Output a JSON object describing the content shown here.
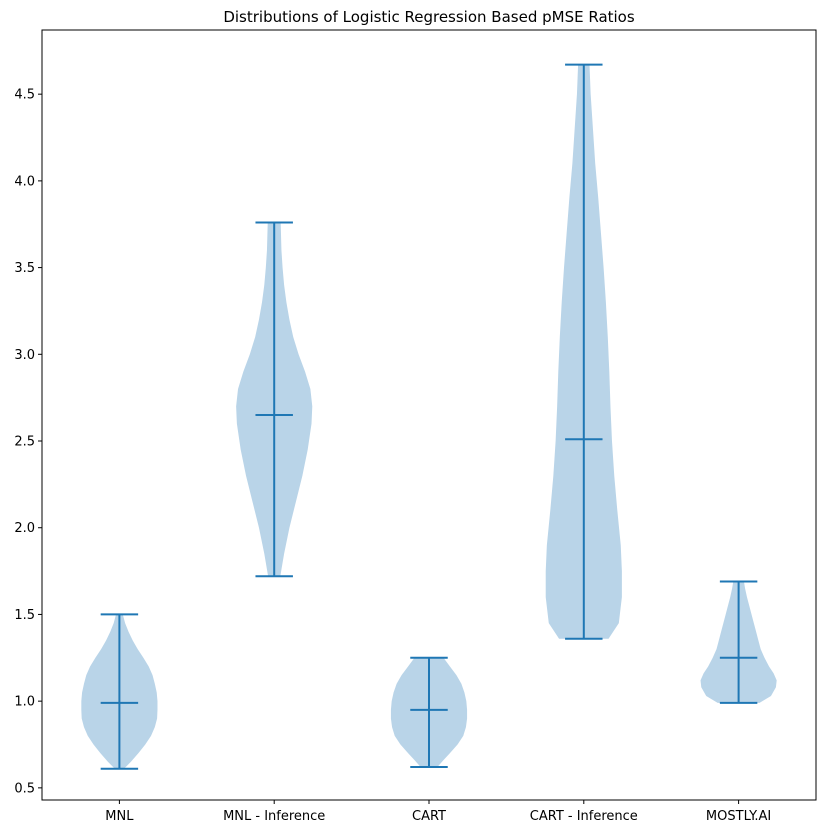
{
  "chart_data": {
    "type": "violin",
    "title": "Distributions of Logistic Regression Based pMSE Ratios",
    "xlabel": "",
    "ylabel": "",
    "categories": [
      "MNL",
      "MNL - Inference",
      "CART",
      "CART - Inference",
      "MOSTLY.AI"
    ],
    "ylim": [
      0.43,
      4.87
    ],
    "yticks": [
      0.5,
      1.0,
      1.5,
      2.0,
      2.5,
      3.0,
      3.5,
      4.0,
      4.5
    ],
    "ytick_labels": [
      "0.5",
      "1.0",
      "1.5",
      "2.0",
      "2.5",
      "3.0",
      "3.5",
      "4.0",
      "4.5"
    ],
    "grid": false,
    "colors": {
      "line": "#1f77b4",
      "body": "#b9d4e8"
    },
    "series": [
      {
        "category": "MNL",
        "min": 0.61,
        "median": 0.99,
        "max": 1.5,
        "density": [
          [
            0.61,
            0.12
          ],
          [
            0.65,
            0.3
          ],
          [
            0.7,
            0.5
          ],
          [
            0.75,
            0.68
          ],
          [
            0.8,
            0.83
          ],
          [
            0.85,
            0.93
          ],
          [
            0.9,
            0.99
          ],
          [
            0.95,
            1.0
          ],
          [
            1.0,
            1.0
          ],
          [
            1.05,
            0.98
          ],
          [
            1.1,
            0.93
          ],
          [
            1.15,
            0.87
          ],
          [
            1.2,
            0.77
          ],
          [
            1.25,
            0.63
          ],
          [
            1.3,
            0.48
          ],
          [
            1.35,
            0.35
          ],
          [
            1.4,
            0.24
          ],
          [
            1.45,
            0.15
          ],
          [
            1.5,
            0.09
          ]
        ]
      },
      {
        "category": "MNL - Inference",
        "min": 1.72,
        "median": 2.65,
        "max": 3.76,
        "density": [
          [
            1.72,
            0.16
          ],
          [
            1.85,
            0.26
          ],
          [
            2.0,
            0.4
          ],
          [
            2.15,
            0.57
          ],
          [
            2.3,
            0.74
          ],
          [
            2.45,
            0.88
          ],
          [
            2.6,
            0.98
          ],
          [
            2.7,
            1.0
          ],
          [
            2.8,
            0.95
          ],
          [
            2.9,
            0.81
          ],
          [
            3.0,
            0.64
          ],
          [
            3.1,
            0.5
          ],
          [
            3.2,
            0.4
          ],
          [
            3.3,
            0.32
          ],
          [
            3.4,
            0.26
          ],
          [
            3.5,
            0.22
          ],
          [
            3.6,
            0.19
          ],
          [
            3.76,
            0.17
          ]
        ]
      },
      {
        "category": "CART",
        "min": 0.62,
        "median": 0.95,
        "max": 1.25,
        "density": [
          [
            0.62,
            0.22
          ],
          [
            0.66,
            0.38
          ],
          [
            0.7,
            0.55
          ],
          [
            0.75,
            0.75
          ],
          [
            0.8,
            0.9
          ],
          [
            0.85,
            0.97
          ],
          [
            0.9,
            1.0
          ],
          [
            0.95,
            1.0
          ],
          [
            1.0,
            0.98
          ],
          [
            1.05,
            0.93
          ],
          [
            1.1,
            0.85
          ],
          [
            1.15,
            0.72
          ],
          [
            1.2,
            0.55
          ],
          [
            1.25,
            0.38
          ]
        ]
      },
      {
        "category": "CART - Inference",
        "min": 1.36,
        "median": 2.51,
        "max": 4.67,
        "density": [
          [
            1.36,
            0.65
          ],
          [
            1.45,
            0.92
          ],
          [
            1.6,
            1.0
          ],
          [
            1.75,
            1.0
          ],
          [
            1.9,
            0.97
          ],
          [
            2.1,
            0.88
          ],
          [
            2.3,
            0.8
          ],
          [
            2.5,
            0.74
          ],
          [
            2.7,
            0.7
          ],
          [
            2.9,
            0.67
          ],
          [
            3.1,
            0.63
          ],
          [
            3.3,
            0.58
          ],
          [
            3.5,
            0.52
          ],
          [
            3.7,
            0.45
          ],
          [
            3.9,
            0.38
          ],
          [
            4.1,
            0.3
          ],
          [
            4.3,
            0.24
          ],
          [
            4.5,
            0.18
          ],
          [
            4.67,
            0.15
          ]
        ]
      },
      {
        "category": "MOSTLY.AI",
        "min": 0.99,
        "median": 1.25,
        "max": 1.69,
        "density": [
          [
            0.99,
            0.55
          ],
          [
            1.03,
            0.85
          ],
          [
            1.08,
            0.98
          ],
          [
            1.12,
            1.0
          ],
          [
            1.16,
            0.92
          ],
          [
            1.2,
            0.8
          ],
          [
            1.25,
            0.68
          ],
          [
            1.3,
            0.58
          ],
          [
            1.35,
            0.52
          ],
          [
            1.4,
            0.46
          ],
          [
            1.45,
            0.4
          ],
          [
            1.5,
            0.34
          ],
          [
            1.55,
            0.28
          ],
          [
            1.6,
            0.22
          ],
          [
            1.65,
            0.17
          ],
          [
            1.69,
            0.14
          ]
        ]
      }
    ]
  }
}
